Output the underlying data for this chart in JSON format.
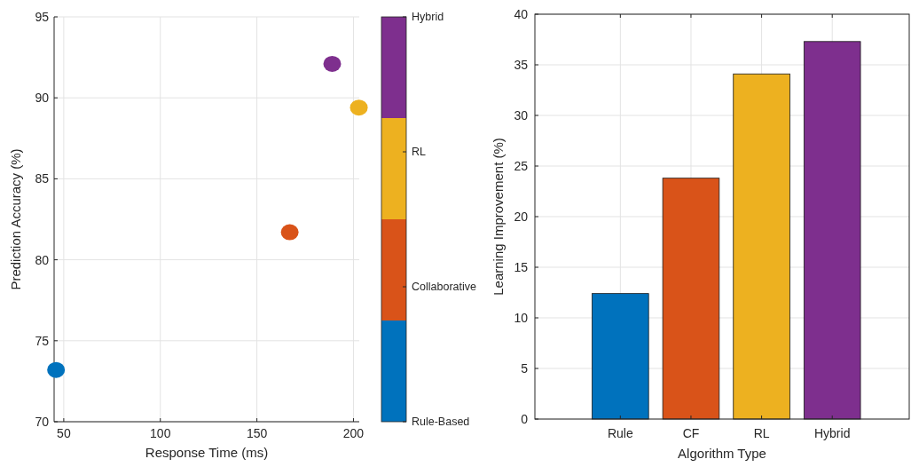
{
  "chart_data": [
    {
      "type": "scatter",
      "xlabel": "Response Time (ms)",
      "ylabel": "Prediction Accuracy (%)",
      "xlim": [
        45,
        203
      ],
      "xticks": [
        50,
        100,
        150,
        200
      ],
      "ylim": [
        70,
        95
      ],
      "yticks": [
        70,
        75,
        80,
        85,
        90,
        95
      ],
      "grid": true,
      "legend": "right",
      "marker": "circle",
      "series": [
        {
          "name": "Rule-Based",
          "color": "#0072bd",
          "x": [
            46
          ],
          "values": [
            73.2
          ]
        },
        {
          "name": "Collaborative",
          "color": "#d95319",
          "x": [
            167
          ],
          "values": [
            81.7
          ]
        },
        {
          "name": "RL",
          "color": "#edb120",
          "x": [
            202.8
          ],
          "values": [
            89.4
          ]
        },
        {
          "name": "Hybrid",
          "color": "#7e2f8e",
          "x": [
            189
          ],
          "values": [
            92.1
          ]
        }
      ]
    },
    {
      "type": "bar",
      "xlabel": "Algorithm Type",
      "ylabel": "Learning Improvement (%)",
      "categories": [
        "Rule",
        "CF",
        "RL",
        "Hybrid"
      ],
      "values": [
        12.4,
        23.8,
        34.1,
        37.3
      ],
      "colors": [
        "#0072bd",
        "#d95319",
        "#edb120",
        "#7e2f8e"
      ],
      "ylim": [
        0,
        40
      ],
      "yticks": [
        0,
        5,
        10,
        15,
        20,
        25,
        30,
        35,
        40
      ],
      "grid": true
    }
  ]
}
